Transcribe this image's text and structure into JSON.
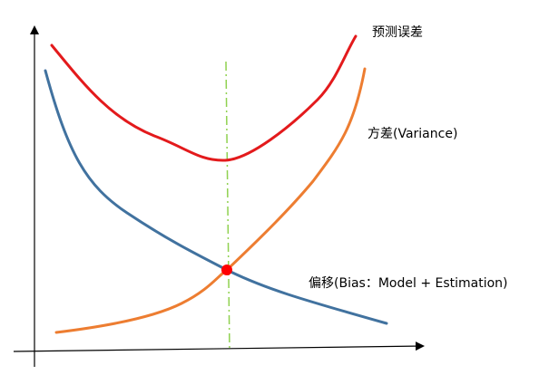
{
  "labels": {
    "prediction_error": "预测误差",
    "variance": "方差(Variance)",
    "bias": "偏移(Bias：Model + Estimation)"
  },
  "colors": {
    "prediction_error": "#e31a1c",
    "variance": "#ed7d31",
    "bias": "#41729f",
    "optimum_line": "#8fd14f",
    "intersection_point": "#ff0000",
    "axes": "#000000"
  }
}
